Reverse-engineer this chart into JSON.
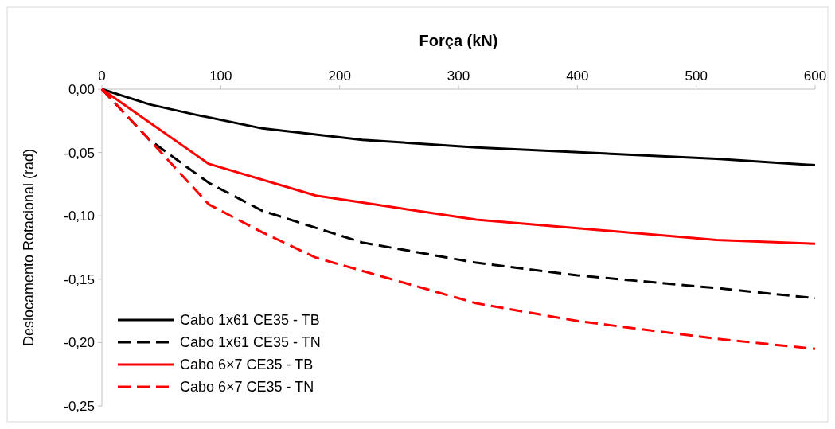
{
  "chart_data": {
    "type": "line",
    "xlabel": "Força (kN)",
    "ylabel": "Deslocamento Rotacional (rad)",
    "xlim": [
      0,
      600
    ],
    "xticks": [
      0,
      100,
      200,
      300,
      400,
      500,
      600
    ],
    "ylim": [
      -0.25,
      0
    ],
    "yticks": [
      {
        "value": 0,
        "label": "0,00"
      },
      {
        "value": -0.05,
        "label": "-0,05"
      },
      {
        "value": -0.1,
        "label": "-0,10"
      },
      {
        "value": -0.15,
        "label": "-0,15"
      },
      {
        "value": -0.2,
        "label": "-0,20"
      },
      {
        "value": -0.25,
        "label": "-0,25"
      }
    ],
    "grid": false,
    "legend": "bottom left",
    "marker": "none",
    "series": [
      {
        "name": "Cabo 1x61 CE35 - TB",
        "color": "#000000",
        "line_style": "solid",
        "x": [
          0,
          40,
          78,
          135,
          219,
          315,
          517,
          600
        ],
        "values": [
          0,
          -0.012,
          -0.02,
          -0.031,
          -0.04,
          -0.046,
          -0.055,
          -0.06
        ]
      },
      {
        "name": "Cabo 1x61 CE35 - TN",
        "color": "#000000",
        "line_style": "dashed",
        "x": [
          0,
          40,
          90,
          135,
          219,
          315,
          400,
          517,
          600
        ],
        "values": [
          0,
          -0.04,
          -0.074,
          -0.096,
          -0.121,
          -0.137,
          -0.147,
          -0.157,
          -0.165
        ]
      },
      {
        "name": "Cabo 6×7 CE35 - TB",
        "color": "#ff0000",
        "line_style": "solid",
        "x": [
          0,
          90,
          180,
          315,
          517,
          600
        ],
        "values": [
          0,
          -0.059,
          -0.084,
          -0.103,
          -0.119,
          -0.122
        ]
      },
      {
        "name": "Cabo 6×7 CE35 - TN",
        "color": "#ff0000",
        "line_style": "dashed",
        "x": [
          0,
          40,
          90,
          135,
          180,
          315,
          400,
          517,
          600
        ],
        "values": [
          0,
          -0.04,
          -0.091,
          -0.113,
          -0.133,
          -0.169,
          -0.183,
          -0.197,
          -0.205
        ]
      }
    ]
  }
}
